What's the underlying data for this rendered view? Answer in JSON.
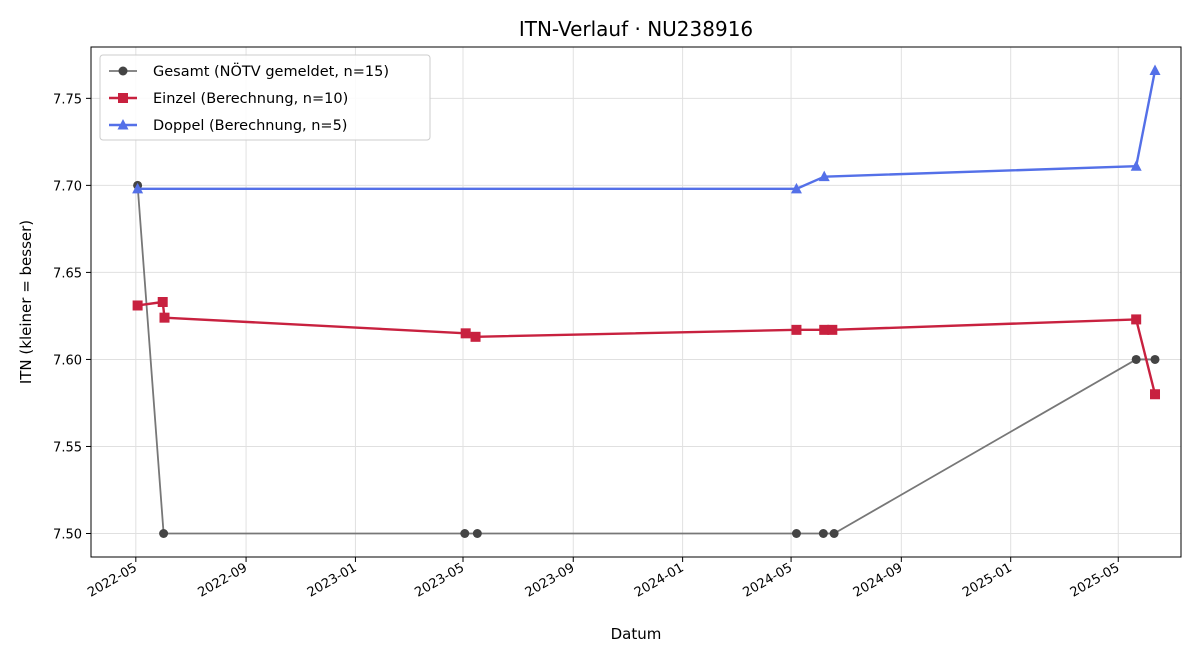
{
  "chart_data": {
    "type": "line",
    "title": "ITN-Verlauf · NU238916",
    "xlabel": "Datum",
    "ylabel": "ITN  (kleiner = besser)",
    "xlim": [
      "2022-03-12",
      "2025-07-10"
    ],
    "ylim": [
      7.4865,
      7.7795
    ],
    "x_ticks": [
      "2022-05",
      "2022-09",
      "2023-01",
      "2023-05",
      "2023-09",
      "2024-01",
      "2024-05",
      "2024-09",
      "2025-01",
      "2025-05"
    ],
    "y_ticks": [
      "7.50",
      "7.55",
      "7.60",
      "7.65",
      "7.70",
      "7.75"
    ],
    "grid": true,
    "legend_position": "top-left",
    "series": [
      {
        "name": "Gesamt (NÖTV gemeldet, n=15)",
        "color": "#777777",
        "marker": "circle",
        "points": [
          [
            "2022-05-03",
            7.7
          ],
          [
            "2022-06-01",
            7.5
          ],
          [
            "2023-05-03",
            7.5
          ],
          [
            "2023-05-17",
            7.5
          ],
          [
            "2024-05-07",
            7.5
          ],
          [
            "2024-06-06",
            7.5
          ],
          [
            "2024-06-18",
            7.5
          ],
          [
            "2025-05-21",
            7.6
          ],
          [
            "2025-06-11",
            7.6
          ]
        ]
      },
      {
        "name": "Einzel (Berechnung, n=10)",
        "color": "#c8213f",
        "marker": "square",
        "points": [
          [
            "2022-05-03",
            7.631
          ],
          [
            "2022-05-31",
            7.633
          ],
          [
            "2022-06-02",
            7.624
          ],
          [
            "2023-05-04",
            7.615
          ],
          [
            "2023-05-15",
            7.613
          ],
          [
            "2024-05-07",
            7.617
          ],
          [
            "2024-06-07",
            7.617
          ],
          [
            "2024-06-16",
            7.617
          ],
          [
            "2025-05-21",
            7.623
          ],
          [
            "2025-06-11",
            7.58
          ]
        ]
      },
      {
        "name": "Doppel (Berechnung, n=5)",
        "color": "#5470e8",
        "marker": "triangle",
        "points": [
          [
            "2022-05-03",
            7.698
          ],
          [
            "2024-05-07",
            7.698
          ],
          [
            "2024-06-07",
            7.705
          ],
          [
            "2025-05-21",
            7.711
          ],
          [
            "2025-06-11",
            7.766
          ]
        ]
      }
    ]
  }
}
